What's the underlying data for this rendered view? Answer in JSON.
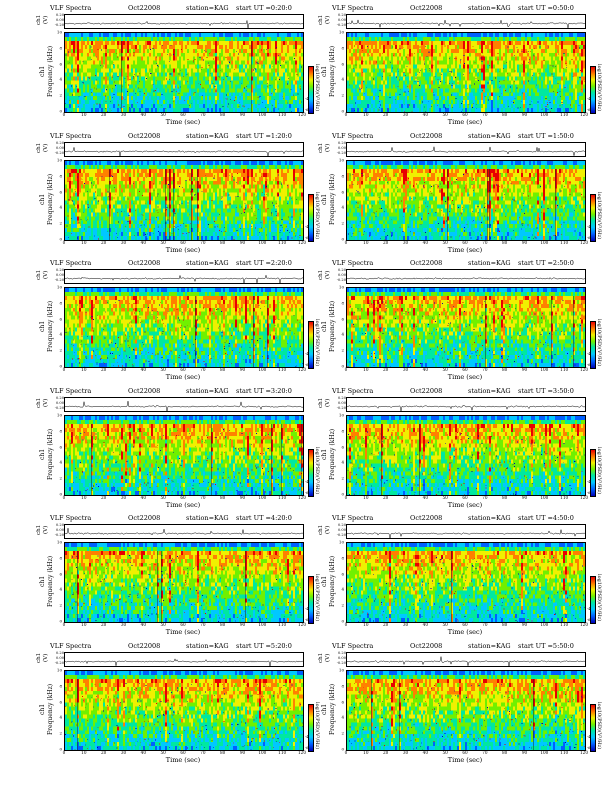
{
  "panel_text": {
    "title": "VLF Spectra",
    "date": "Oct22008",
    "station": "station=KAG",
    "ch1_label": "ch1 (V)",
    "ch1_ticks": [
      "0.20",
      "0.00",
      "-0.20"
    ],
    "y_label_left": "ch1",
    "y_label_main": "Frequency (kHz)",
    "x_label": "Time (sec)",
    "cbar_label": "log10(PSD)(V²/Hz)",
    "cbar_ticks": [
      "-6",
      "-4"
    ]
  },
  "chart_data": [
    {
      "type": "heatmap",
      "title": "VLF Spectra   Oct22008   station=KAG   start  UT =0:20:0",
      "start_ut": "start  UT =0:20:0",
      "x": [
        0,
        10,
        20,
        30,
        40,
        50,
        60,
        70,
        80,
        90,
        100,
        110,
        120
      ],
      "y": [
        0,
        2,
        4,
        6,
        8,
        10
      ],
      "xlabel": "Time (sec)",
      "ylabel": "Frequency (kHz)",
      "xlim": [
        0,
        120
      ],
      "ylim": [
        0,
        10
      ]
    },
    {
      "type": "heatmap",
      "title": "VLF Spectra   Oct22008   station=KAG   start  UT =0:50:0",
      "start_ut": "start  UT =0:50:0",
      "x": [
        0,
        10,
        20,
        30,
        40,
        50,
        60,
        70,
        80,
        90,
        100,
        110,
        120
      ],
      "y": [
        0,
        2,
        4,
        6,
        8,
        10
      ],
      "xlabel": "Time (sec)",
      "ylabel": "Frequency (kHz)",
      "xlim": [
        0,
        120
      ],
      "ylim": [
        0,
        10
      ]
    },
    {
      "type": "heatmap",
      "title": "VLF Spectra   Oct22008   station=KAG   start  UT =1:20:0",
      "start_ut": "start  UT =1:20:0",
      "x": [
        0,
        10,
        20,
        30,
        40,
        50,
        60,
        70,
        80,
        90,
        100,
        110,
        120
      ],
      "y": [
        0,
        2,
        4,
        6,
        8,
        10
      ],
      "xlabel": "Time (sec)",
      "ylabel": "Frequency (kHz)",
      "xlim": [
        0,
        120
      ],
      "ylim": [
        0,
        10
      ]
    },
    {
      "type": "heatmap",
      "title": "VLF Spectra   Oct22008   station=KAG   start  UT =1:50:0",
      "start_ut": "start  UT =1:50:0",
      "x": [
        0,
        10,
        20,
        30,
        40,
        50,
        60,
        70,
        80,
        90,
        100,
        110,
        120
      ],
      "y": [
        0,
        2,
        4,
        6,
        8,
        10
      ],
      "xlabel": "Time (sec)",
      "ylabel": "Frequency (kHz)",
      "xlim": [
        0,
        120
      ],
      "ylim": [
        0,
        10
      ]
    },
    {
      "type": "heatmap",
      "title": "VLF Spectra   Oct22008   station=KAG   start  UT =2:20:0",
      "start_ut": "start  UT =2:20:0",
      "x": [
        0,
        10,
        20,
        30,
        40,
        50,
        60,
        70,
        80,
        90,
        100,
        110,
        120
      ],
      "y": [
        0,
        2,
        4,
        6,
        8,
        10
      ],
      "xlabel": "Time (sec)",
      "ylabel": "Frequency (kHz)",
      "xlim": [
        0,
        120
      ],
      "ylim": [
        0,
        10
      ]
    },
    {
      "type": "heatmap",
      "title": "VLF Spectra   Oct22008   station=KAG   start  UT =2:50:0",
      "start_ut": "start  UT =2:50:0",
      "x": [
        0,
        10,
        20,
        30,
        40,
        50,
        60,
        70,
        80,
        90,
        100,
        110,
        120
      ],
      "y": [
        0,
        2,
        4,
        6,
        8,
        10
      ],
      "xlabel": "Time (sec)",
      "ylabel": "Frequency (kHz)",
      "xlim": [
        0,
        120
      ],
      "ylim": [
        0,
        10
      ]
    },
    {
      "type": "heatmap",
      "title": "VLF Spectra   Oct22008   station=KAG   start  UT =3:20:0",
      "start_ut": "start  UT =3:20:0",
      "x": [
        0,
        10,
        20,
        30,
        40,
        50,
        60,
        70,
        80,
        90,
        100,
        110,
        120
      ],
      "y": [
        0,
        2,
        4,
        6,
        8,
        10
      ],
      "xlabel": "Time (sec)",
      "ylabel": "Frequency (kHz)",
      "xlim": [
        0,
        120
      ],
      "ylim": [
        0,
        10
      ]
    },
    {
      "type": "heatmap",
      "title": "VLF Spectra   Oct22008   station=KAG   start  UT =3:50:0",
      "start_ut": "start  UT =3:50:0",
      "x": [
        0,
        10,
        20,
        30,
        40,
        50,
        60,
        70,
        80,
        90,
        100,
        110,
        120
      ],
      "y": [
        0,
        2,
        4,
        6,
        8,
        10
      ],
      "xlabel": "Time (sec)",
      "ylabel": "Frequency (kHz)",
      "xlim": [
        0,
        120
      ],
      "ylim": [
        0,
        10
      ]
    },
    {
      "type": "heatmap",
      "title": "VLF Spectra   Oct22008   station=KAG   start  UT =4:20:0",
      "start_ut": "start  UT =4:20:0",
      "x": [
        0,
        10,
        20,
        30,
        40,
        50,
        60,
        70,
        80,
        90,
        100,
        110,
        120
      ],
      "y": [
        0,
        2,
        4,
        6,
        8,
        10
      ],
      "xlabel": "Time (sec)",
      "ylabel": "Frequency (kHz)",
      "xlim": [
        0,
        120
      ],
      "ylim": [
        0,
        10
      ]
    },
    {
      "type": "heatmap",
      "title": "VLF Spectra   Oct22008   station=KAG   start  UT =4:50:0",
      "start_ut": "start  UT =4:50:0",
      "x": [
        0,
        10,
        20,
        30,
        40,
        50,
        60,
        70,
        80,
        90,
        100,
        110,
        120
      ],
      "y": [
        0,
        2,
        4,
        6,
        8,
        10
      ],
      "xlabel": "Time (sec)",
      "ylabel": "Frequency (kHz)",
      "xlim": [
        0,
        120
      ],
      "ylim": [
        0,
        10
      ]
    },
    {
      "type": "heatmap",
      "title": "VLF Spectra   Oct22008   station=KAG   start  UT =5:20:0",
      "start_ut": "start  UT =5:20:0",
      "x": [
        0,
        10,
        20,
        30,
        40,
        50,
        60,
        70,
        80,
        90,
        100,
        110,
        120
      ],
      "y": [
        0,
        2,
        4,
        6,
        8,
        10
      ],
      "xlabel": "Time (sec)",
      "ylabel": "Frequency (kHz)",
      "xlim": [
        0,
        120
      ],
      "ylim": [
        0,
        10
      ]
    },
    {
      "type": "heatmap",
      "title": "VLF Spectra   Oct22008   station=KAG   start  UT =5:50:0",
      "start_ut": "start  UT =5:50:0",
      "x": [
        0,
        10,
        20,
        30,
        40,
        50,
        60,
        70,
        80,
        90,
        100,
        110,
        120
      ],
      "y": [
        0,
        2,
        4,
        6,
        8,
        10
      ],
      "xlabel": "Time (sec)",
      "ylabel": "Frequency (kHz)",
      "xlim": [
        0,
        120
      ],
      "ylim": [
        0,
        10
      ]
    }
  ],
  "colors": {
    "colormap": [
      "#0000b4",
      "#0060ff",
      "#00c8ff",
      "#00e8a0",
      "#70f000",
      "#f0f000",
      "#ff8000",
      "#e80000"
    ]
  }
}
